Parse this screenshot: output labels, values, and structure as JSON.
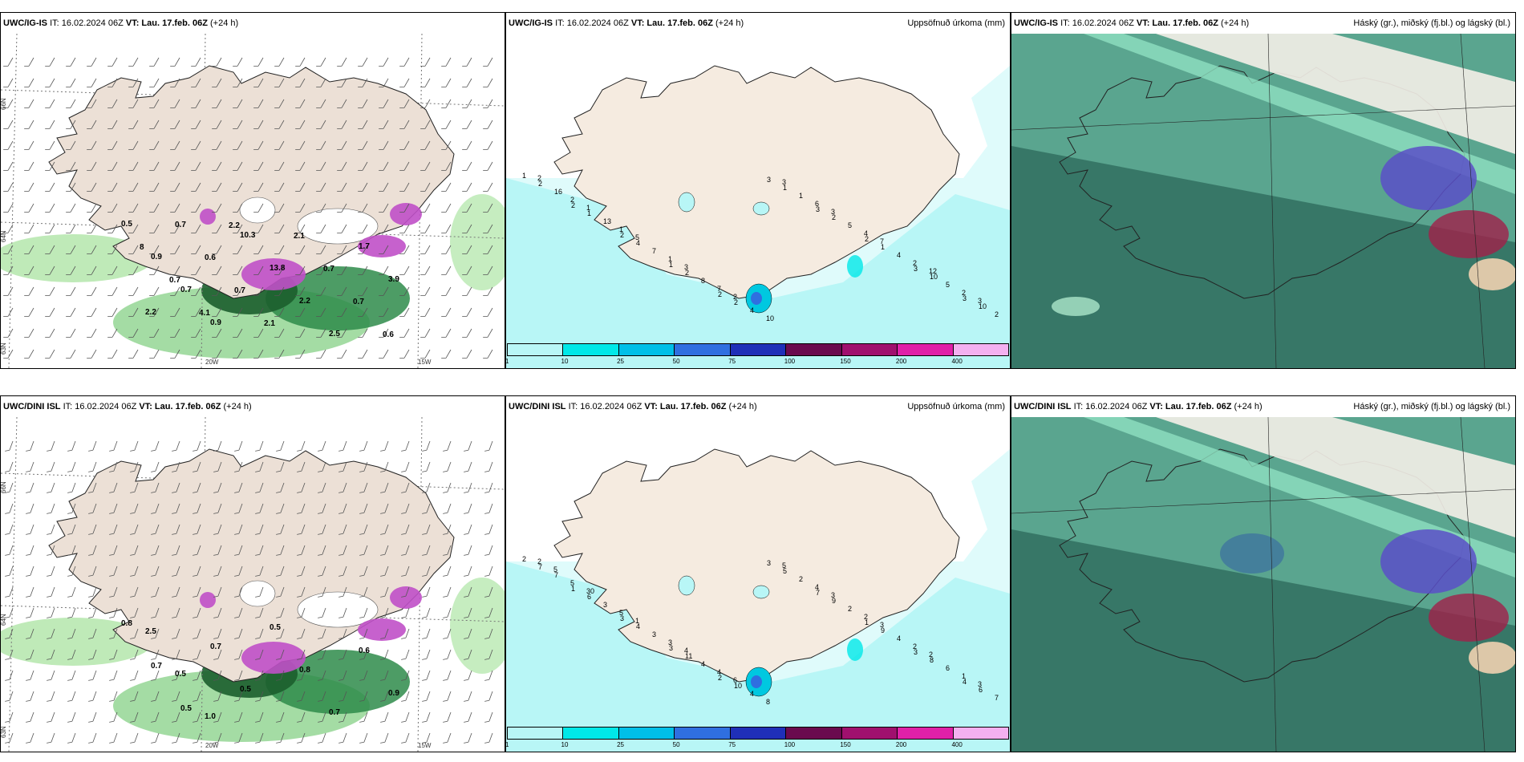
{
  "rows": [
    {
      "panels": [
        {
          "model": "UWC/IG-IS",
          "it": "IT: 16.02.2024 06Z",
          "vt_label": "VT:",
          "vt": "Lau. 17.feb. 06Z",
          "lead": "(+24 h)",
          "right": "",
          "type": "wind"
        },
        {
          "model": "UWC/IG-IS",
          "it": "IT: 16.02.2024 06Z",
          "vt_label": "VT:",
          "vt": "Lau. 17.feb. 06Z",
          "lead": "(+24 h)",
          "right": "Uppsöfnuð úrkoma (mm)",
          "type": "precip"
        },
        {
          "model": "UWC/IG-IS",
          "it": "IT: 16.02.2024 06Z",
          "vt_label": "VT:",
          "vt": "Lau. 17.feb. 06Z",
          "lead": "(+24 h)",
          "right": "Háský (gr.), miðský (fj.bl.) og lágský (bl.)",
          "type": "cloud"
        }
      ]
    },
    {
      "panels": [
        {
          "model": "UWC/DINI ISL",
          "it": "IT: 16.02.2024 06Z",
          "vt_label": "VT:",
          "vt": "Lau. 17.feb. 06Z",
          "lead": "(+24 h)",
          "right": "",
          "type": "wind"
        },
        {
          "model": "UWC/DINI ISL",
          "it": "IT: 16.02.2024 06Z",
          "vt_label": "VT:",
          "vt": "Lau. 17.feb. 06Z",
          "lead": "(+24 h)",
          "right": "Uppsöfnuð úrkoma (mm)",
          "type": "precip"
        },
        {
          "model": "UWC/DINI ISL",
          "it": "IT: 16.02.2024 06Z",
          "vt_label": "VT:",
          "vt": "Lau. 17.feb. 06Z",
          "lead": "(+24 h)",
          "right": "Háský (gr.), miðský (fj.bl.) og lágský (bl.)",
          "type": "cloud"
        }
      ]
    }
  ],
  "colorbar": {
    "ticks": [
      "1",
      "10",
      "25",
      "50",
      "75",
      "100",
      "150",
      "200",
      "400"
    ],
    "colors": [
      "#b8f6f6",
      "#00e8e8",
      "#00bfe8",
      "#2f6fe0",
      "#1f2fb8",
      "#6a0a4e",
      "#a0106e",
      "#e020a8",
      "#f4b0f0"
    ]
  },
  "coords": {
    "lat66": "66N",
    "lat64": "64N",
    "lat65": "65N",
    "lon20": "20W",
    "lon15": "15W",
    "lat63": "63N"
  },
  "wind_labels_top": [
    "0.5",
    "0.9",
    "0.7",
    "0.9",
    "10.3",
    "13.8",
    "2.2",
    "2.5",
    "1.7",
    "3.9",
    "2.2",
    "0.7",
    "0.6",
    "0.7",
    "2.1",
    "2.1",
    "0.7",
    "0.7",
    "0.6",
    "8",
    "0.7",
    "4.1",
    "2.2"
  ],
  "wind_labels_bottom": [
    "0.8",
    "0.7",
    "0.5",
    "0.7",
    "0.5",
    "0.5",
    "0.8",
    "0.7",
    "0.6",
    "0.9",
    "2.5",
    "0.5",
    "1.0"
  ],
  "precip_labels_top": [
    "1",
    "2",
    "2",
    "1",
    "2",
    "3",
    "3",
    "2",
    "3",
    "3",
    "2",
    "1",
    "4",
    "2",
    "2",
    "1",
    "2",
    "1",
    "10",
    "10",
    "16",
    "13",
    "7",
    "8",
    "4",
    "1",
    "5",
    "4",
    "5",
    "2",
    "2",
    "1",
    "1",
    "7",
    "10",
    "6",
    "4",
    "2",
    "2",
    "2",
    "1",
    "5",
    "3",
    "2",
    "3",
    "3",
    "7",
    "12",
    "3"
  ],
  "precip_labels_bottom": [
    "2",
    "1",
    "3",
    "3",
    "2",
    "3",
    "7",
    "1",
    "3",
    "4",
    "7",
    "6",
    "4",
    "11",
    "10",
    "5",
    "9",
    "9",
    "8",
    "6",
    "7",
    "3",
    "3",
    "4",
    "4",
    "2",
    "2",
    "4",
    "6",
    "7",
    "5",
    "5",
    "3",
    "4",
    "8",
    "4",
    "2",
    "2",
    "1",
    "2",
    "30",
    "1",
    "4",
    "6",
    "5",
    "3",
    "3",
    "2",
    "3",
    "5"
  ],
  "colors": {
    "land": "#f5ebe0",
    "land_wind": "#ece0d6",
    "sea_precip": "#b8f6f6",
    "cloud_base": "#5aa58f",
    "cloud_dark": "#2e6b5c",
    "cloud_light": "#9fd9bf"
  }
}
